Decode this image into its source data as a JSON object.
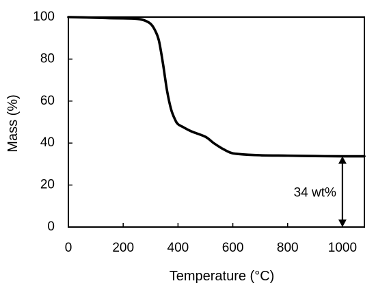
{
  "chart_data": {
    "type": "line",
    "title": "",
    "xlabel": "Temperature (°C)",
    "ylabel": "Mass (%)",
    "xlim": [
      0,
      1080
    ],
    "ylim": [
      0,
      100
    ],
    "xticks": [
      0,
      200,
      400,
      600,
      800,
      1000
    ],
    "yticks": [
      0,
      20,
      40,
      60,
      80,
      100
    ],
    "grid": false,
    "legend": "none",
    "series": [
      {
        "color": "#000000",
        "x": [
          0,
          100,
          150,
          200,
          240,
          260,
          280,
          300,
          315,
          330,
          345,
          360,
          375,
          390,
          400,
          420,
          450,
          500,
          530,
          560,
          590,
          620,
          700,
          800,
          900,
          1000,
          1080
        ],
        "y": [
          100,
          99.7,
          99.5,
          99.4,
          99.3,
          99.0,
          98.3,
          96.8,
          94,
          89,
          78,
          65,
          56,
          51,
          49,
          47.5,
          45.5,
          43,
          40,
          37.5,
          35.5,
          34.8,
          34.2,
          34.0,
          33.8,
          33.7,
          33.7
        ]
      }
    ],
    "reference_line": {
      "y": 100,
      "x_range": [
        0,
        1080
      ],
      "color": "#000000"
    },
    "annotations": [
      {
        "text": "34 wt%",
        "arrow_x": 1000,
        "arrow_from": 0,
        "arrow_to": 33.7
      }
    ]
  }
}
